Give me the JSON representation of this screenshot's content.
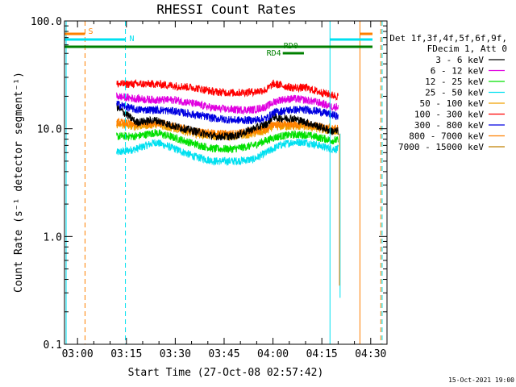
{
  "chart_data": {
    "type": "line",
    "title": "RHESSI Count Rates",
    "xlabel": "Start Time (27-Oct-08 02:57:42)",
    "ylabel": "Count Rate (s⁻¹ detector segment⁻¹)",
    "yscale": "log",
    "ylim": [
      0.1,
      100
    ],
    "xlim_minutes": [
      -4,
      95
    ],
    "x_unit": "minutes after 03:00 UT",
    "xticks": [
      {
        "x": 0,
        "label": "03:00"
      },
      {
        "x": 15,
        "label": "03:15"
      },
      {
        "x": 30,
        "label": "03:30"
      },
      {
        "x": 45,
        "label": "03:45"
      },
      {
        "x": 60,
        "label": "04:00"
      },
      {
        "x": 75,
        "label": "04:15"
      },
      {
        "x": 90,
        "label": "04:30"
      }
    ],
    "yticks": [
      {
        "y": 0.1,
        "label": "0.1"
      },
      {
        "y": 1.0,
        "label": "1.0"
      },
      {
        "y": 10.0,
        "label": "10.0"
      },
      {
        "y": 100.0,
        "label": "100.0"
      }
    ],
    "legend_header": [
      "Det 1f,3f,4f,5f,6f,9f,",
      "FDecim 1, Att 0"
    ],
    "legend_placement": "right",
    "series": [
      {
        "name": "3 - 6 keV",
        "color": "#000000",
        "x": [
          12,
          18,
          24,
          30,
          36,
          42,
          48,
          54,
          58,
          60,
          62,
          66,
          70,
          74,
          78,
          80
        ],
        "values": [
          16,
          11.5,
          12,
          10.5,
          9.5,
          8.5,
          8.5,
          10,
          11,
          13,
          12.5,
          12.5,
          11.5,
          10.5,
          9.5,
          9.5
        ]
      },
      {
        "name": "6 - 12 keV",
        "color": "#e000e0",
        "x": [
          12,
          18,
          24,
          30,
          36,
          42,
          48,
          54,
          58,
          60,
          62,
          66,
          70,
          74,
          78,
          80
        ],
        "values": [
          20,
          19,
          18.5,
          18.5,
          17,
          15.5,
          15,
          15,
          16,
          17.5,
          18.5,
          19,
          18.5,
          17.5,
          16,
          16
        ]
      },
      {
        "name": "12 - 25 keV",
        "color": "#00e000",
        "x": [
          12,
          18,
          24,
          30,
          36,
          42,
          48,
          54,
          58,
          60,
          62,
          66,
          70,
          74,
          78,
          80
        ],
        "values": [
          8.5,
          8.5,
          9.2,
          8.2,
          7.2,
          6.5,
          6.5,
          7.0,
          7.8,
          8.2,
          8.5,
          8.8,
          8.8,
          8.3,
          7.8,
          7.8
        ]
      },
      {
        "name": "25 - 50 keV",
        "color": "#00e0f0",
        "x": [
          12,
          18,
          24,
          30,
          36,
          42,
          48,
          54,
          58,
          60,
          62,
          66,
          70,
          74,
          78,
          80
        ],
        "values": [
          6.0,
          6.5,
          7.5,
          6.5,
          5.5,
          5.0,
          5.0,
          5.2,
          6.0,
          6.5,
          7.0,
          7.5,
          7.5,
          7.0,
          6.5,
          6.5
        ]
      },
      {
        "name": "50 - 100 keV",
        "color": "#f0a000",
        "x": [
          12,
          18,
          24,
          30,
          36,
          42,
          48,
          54,
          58,
          60,
          62,
          66,
          70,
          74,
          78,
          80
        ],
        "values": [
          11,
          10.5,
          11,
          10,
          9,
          8.5,
          8.5,
          9,
          9.5,
          10.5,
          10.5,
          10.5,
          10.5,
          10,
          9.5,
          9.5
        ]
      },
      {
        "name": "100 - 300 keV",
        "color": "#ff0000",
        "x": [
          12,
          18,
          24,
          30,
          36,
          42,
          48,
          54,
          58,
          60,
          62,
          66,
          70,
          74,
          78,
          80
        ],
        "values": [
          26,
          26,
          26,
          25,
          24,
          22,
          21.5,
          22,
          23,
          26,
          25.5,
          24,
          24,
          22,
          20.5,
          20
        ]
      },
      {
        "name": "300 - 800 keV",
        "color": "#0000e0",
        "x": [
          12,
          18,
          24,
          30,
          36,
          42,
          48,
          54,
          58,
          60,
          62,
          66,
          70,
          74,
          78,
          80
        ],
        "values": [
          17,
          15,
          15,
          14.5,
          13.5,
          12.5,
          12,
          12,
          12.5,
          14,
          14.5,
          15,
          15,
          14.5,
          13.5,
          13
        ]
      },
      {
        "name": "800 - 7000 keV",
        "color": "#ff8000",
        "x": [
          12,
          18,
          24,
          30,
          36,
          42,
          48,
          54,
          58,
          60,
          62,
          66,
          70,
          74,
          78,
          80
        ],
        "values": [
          11.5,
          11,
          11.5,
          10.5,
          9.5,
          9,
          9,
          9.5,
          10,
          11,
          11,
          11,
          11,
          10.5,
          10,
          10
        ]
      },
      {
        "name": "7000 - 15000 keV",
        "color": "#c08000",
        "x": [],
        "values": []
      }
    ],
    "annotations": [
      {
        "label": "S",
        "color": "#ff8000"
      },
      {
        "label": "N",
        "color": "#00e0f0"
      },
      {
        "label": "RD0",
        "color": "#008000"
      },
      {
        "label": "RD4",
        "color": "#008000"
      }
    ],
    "timestamp": "15-Oct-2021 19:00"
  }
}
